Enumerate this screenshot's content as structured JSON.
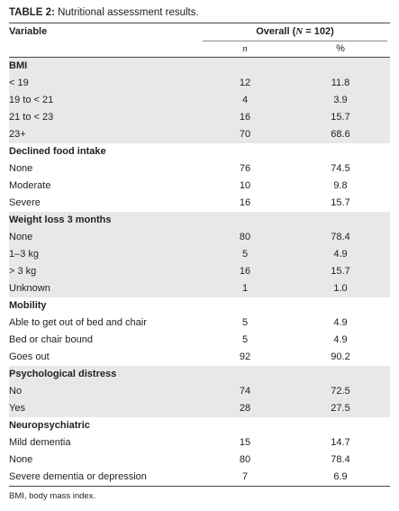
{
  "title": {
    "label": "TABLE 2:",
    "text": "Nutritional assessment results."
  },
  "header": {
    "variable": "Variable",
    "overall": [
      "Overall (",
      "N",
      " = 102)"
    ],
    "n": "n",
    "percent": "%"
  },
  "sections": [
    {
      "title": "BMI",
      "rows": [
        [
          "< 19",
          "12",
          "11.8"
        ],
        [
          "19 to < 21",
          "4",
          "3.9"
        ],
        [
          "21 to < 23",
          "16",
          "15.7"
        ],
        [
          "23+",
          "70",
          "68.6"
        ]
      ]
    },
    {
      "title": "Declined food intake",
      "rows": [
        [
          "None",
          "76",
          "74.5"
        ],
        [
          "Moderate",
          "10",
          "9.8"
        ],
        [
          "Severe",
          "16",
          "15.7"
        ]
      ]
    },
    {
      "title": "Weight loss 3 months",
      "rows": [
        [
          "None",
          "80",
          "78.4"
        ],
        [
          "1–3 kg",
          "5",
          "4.9"
        ],
        [
          "> 3 kg",
          "16",
          "15.7"
        ],
        [
          "Unknown",
          "1",
          "1.0"
        ]
      ]
    },
    {
      "title": "Mobility",
      "rows": [
        [
          "Able to get out of bed and chair",
          "5",
          "4.9"
        ],
        [
          "Bed or chair bound",
          "5",
          "4.9"
        ],
        [
          "Goes out",
          "92",
          "90.2"
        ]
      ]
    },
    {
      "title": "Psychological distress",
      "rows": [
        [
          "No",
          "74",
          "72.5"
        ],
        [
          "Yes",
          "28",
          "27.5"
        ]
      ]
    },
    {
      "title": "Neuropsychiatric",
      "rows": [
        [
          "Mild dementia",
          "15",
          "14.7"
        ],
        [
          "None",
          "80",
          "78.4"
        ],
        [
          "Severe dementia or depression",
          "7",
          "6.9"
        ]
      ]
    }
  ],
  "footnote": "BMI, body mass index."
}
